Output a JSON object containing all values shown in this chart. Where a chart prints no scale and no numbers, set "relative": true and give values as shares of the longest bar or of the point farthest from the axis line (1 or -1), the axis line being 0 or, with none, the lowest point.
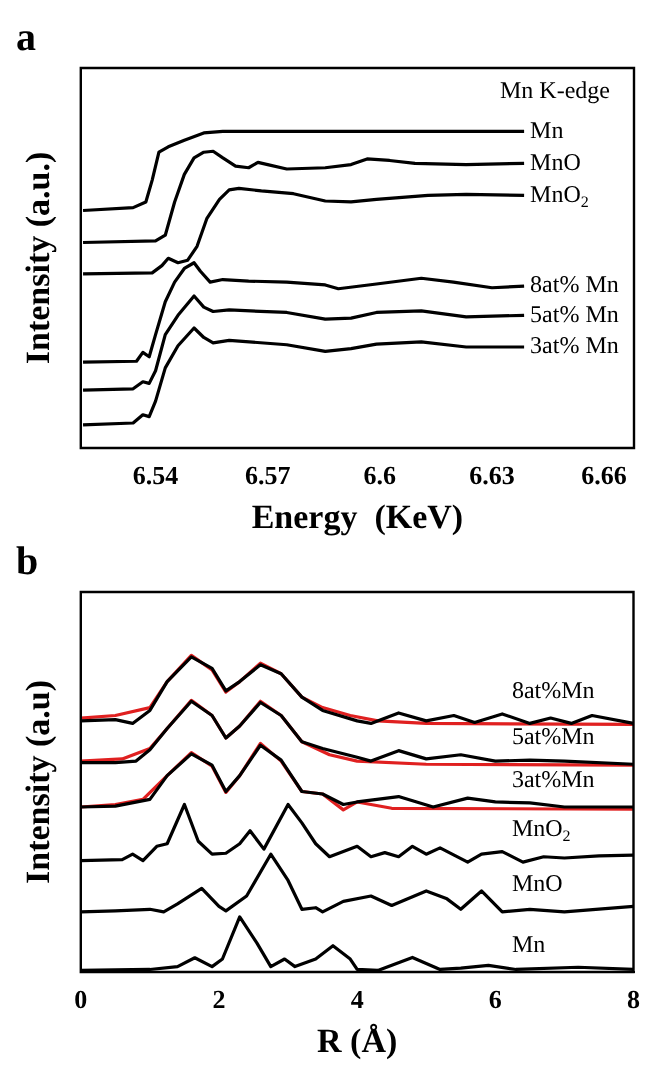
{
  "chart_data": [
    {
      "type": "line",
      "title": "a",
      "xlabel": "Energy  (KeV)",
      "ylabel": "Intensity (a.u.)",
      "relative": true,
      "marker": "none",
      "xlim": [
        6.52,
        6.668
      ],
      "xticks": [
        6.54,
        6.57,
        6.6,
        6.63,
        6.66
      ],
      "annotations": [
        "Mn K-edge"
      ],
      "series": [
        {
          "name": "Mn",
          "color": "#000000",
          "x": [
            6.5206,
            6.534,
            6.5374,
            6.5391,
            6.5409,
            6.5434,
            6.5477,
            6.5529,
            6.558,
            6.6386
          ],
          "values": [
            0.75,
            0.759,
            0.777,
            0.846,
            0.934,
            0.951,
            0.972,
            0.995,
            1,
            1
          ]
        },
        {
          "name": "MnO",
          "color": "#000000",
          "x": [
            6.5206,
            6.54,
            6.5426,
            6.5451,
            6.5477,
            6.5503,
            6.5529,
            6.5554,
            6.558,
            6.5614,
            6.5649,
            6.5674,
            6.57,
            6.5751,
            6.5854,
            6.5923,
            6.5966,
            6.6026,
            6.6094,
            6.6231,
            6.6386
          ],
          "values": [
            0.649,
            0.654,
            0.672,
            0.777,
            0.864,
            0.916,
            0.934,
            0.937,
            0.916,
            0.89,
            0.885,
            0.902,
            0.895,
            0.881,
            0.885,
            0.895,
            0.913,
            0.908,
            0.899,
            0.895,
            0.899
          ]
        },
        {
          "name": "MnO$_{2}$",
          "color": "#000000",
          "x": [
            6.5206,
            6.5391,
            6.5417,
            6.5434,
            6.546,
            6.5486,
            6.5511,
            6.5537,
            6.5571,
            6.5597,
            6.5623,
            6.5683,
            6.5769,
            6.5854,
            6.5923,
            6.5991,
            6.6129,
            6.6231,
            6.6386
          ],
          "values": [
            0.55,
            0.553,
            0.576,
            0.599,
            0.585,
            0.593,
            0.637,
            0.724,
            0.785,
            0.815,
            0.82,
            0.812,
            0.803,
            0.78,
            0.777,
            0.785,
            0.798,
            0.801,
            0.798
          ]
        },
        {
          "name": "8at% Mn",
          "color": "#000000",
          "x": [
            6.5206,
            6.5349,
            6.5366,
            6.5383,
            6.54,
            6.5426,
            6.5451,
            6.5477,
            6.5503,
            6.552,
            6.5546,
            6.558,
            6.5649,
            6.5751,
            6.5854,
            6.5889,
            6.5991,
            6.6111,
            6.6197,
            6.63,
            6.6386
          ],
          "values": [
            0.271,
            0.274,
            0.302,
            0.288,
            0.358,
            0.462,
            0.524,
            0.567,
            0.585,
            0.558,
            0.524,
            0.532,
            0.527,
            0.524,
            0.515,
            0.503,
            0.518,
            0.536,
            0.524,
            0.506,
            0.511
          ]
        },
        {
          "name": "5at% Mn",
          "color": "#000000",
          "x": [
            6.5206,
            6.534,
            6.5366,
            6.5383,
            6.54,
            6.5426,
            6.546,
            6.5503,
            6.5529,
            6.5554,
            6.5597,
            6.5751,
            6.5854,
            6.5923,
            6.5991,
            6.6111,
            6.6231,
            6.6386
          ],
          "values": [
            0.183,
            0.187,
            0.209,
            0.204,
            0.244,
            0.358,
            0.419,
            0.48,
            0.445,
            0.431,
            0.436,
            0.428,
            0.407,
            0.41,
            0.428,
            0.433,
            0.414,
            0.419
          ]
        },
        {
          "name": "3at% Mn",
          "color": "#000000",
          "x": [
            6.5206,
            6.534,
            6.5366,
            6.5383,
            6.54,
            6.5426,
            6.546,
            6.5503,
            6.5529,
            6.5554,
            6.5597,
            6.5751,
            6.5854,
            6.5923,
            6.5991,
            6.6111,
            6.6231,
            6.6386
          ],
          "values": [
            0.073,
            0.079,
            0.105,
            0.099,
            0.148,
            0.253,
            0.323,
            0.379,
            0.349,
            0.332,
            0.34,
            0.326,
            0.305,
            0.314,
            0.328,
            0.335,
            0.319,
            0.319
          ]
        }
      ]
    },
    {
      "type": "line",
      "title": "b",
      "xlabel": "R (Å)",
      "ylabel": "Intensity (a.u)",
      "relative": true,
      "marker": "none",
      "xlim": [
        0,
        8
      ],
      "xticks": [
        0,
        2,
        4,
        6,
        8
      ],
      "series": [
        {
          "name": "8at%Mn",
          "color": "#000000",
          "x": [
            0,
            0.5,
            0.75,
            1,
            1.25,
            1.6,
            1.9,
            2.1,
            2.3,
            2.6,
            2.9,
            3.2,
            3.5,
            4,
            4.2,
            4.6,
            5,
            5.4,
            5.7,
            6.1,
            6.5,
            6.8,
            7.1,
            7.4,
            8
          ],
          "values": [
            0.793,
            0.797,
            0.785,
            0.826,
            0.917,
            0.995,
            0.959,
            0.888,
            0.917,
            0.97,
            0.942,
            0.868,
            0.826,
            0.793,
            0.785,
            0.818,
            0.793,
            0.81,
            0.788,
            0.815,
            0.785,
            0.802,
            0.785,
            0.81,
            0.785
          ]
        },
        {
          "color": "#e02020",
          "x": [
            0,
            0.5,
            1,
            1.25,
            1.6,
            1.9,
            2.1,
            2.3,
            2.6,
            2.9,
            3.2,
            3.5,
            3.9,
            4.3,
            5,
            8
          ],
          "values": [
            0.802,
            0.81,
            0.835,
            0.917,
            1,
            0.954,
            0.884,
            0.917,
            0.975,
            0.942,
            0.868,
            0.835,
            0.81,
            0.793,
            0.785,
            0.782
          ]
        },
        {
          "name": "5at%Mn",
          "color": "#000000",
          "x": [
            0,
            0.5,
            0.8,
            1,
            1.25,
            1.6,
            1.9,
            2.1,
            2.3,
            2.6,
            2.9,
            3.2,
            3.5,
            4,
            4.2,
            4.6,
            5,
            5.5,
            6,
            6.5,
            7,
            8
          ],
          "values": [
            0.661,
            0.661,
            0.666,
            0.702,
            0.769,
            0.855,
            0.81,
            0.739,
            0.777,
            0.851,
            0.81,
            0.727,
            0.706,
            0.678,
            0.666,
            0.699,
            0.673,
            0.686,
            0.666,
            0.669,
            0.666,
            0.656
          ]
        },
        {
          "color": "#e02020",
          "x": [
            0,
            0.6,
            1,
            1.25,
            1.6,
            1.9,
            2.1,
            2.3,
            2.6,
            2.9,
            3.2,
            3.6,
            4,
            5,
            8
          ],
          "values": [
            0.666,
            0.673,
            0.706,
            0.769,
            0.858,
            0.81,
            0.739,
            0.777,
            0.855,
            0.81,
            0.727,
            0.686,
            0.666,
            0.656,
            0.653
          ]
        },
        {
          "name": "3at%Mn",
          "color": "#000000",
          "x": [
            0,
            0.5,
            1,
            1.25,
            1.6,
            1.9,
            2.1,
            2.3,
            2.6,
            2.9,
            3.2,
            3.5,
            3.8,
            4,
            4.6,
            5.1,
            5.6,
            6,
            6.5,
            7,
            8
          ],
          "values": [
            0.521,
            0.524,
            0.545,
            0.62,
            0.689,
            0.653,
            0.57,
            0.62,
            0.716,
            0.669,
            0.57,
            0.562,
            0.529,
            0.537,
            0.554,
            0.521,
            0.549,
            0.537,
            0.534,
            0.521,
            0.521
          ]
        },
        {
          "color": "#e02020",
          "x": [
            0,
            0.5,
            0.9,
            1.25,
            1.6,
            1.9,
            2.1,
            2.3,
            2.6,
            2.9,
            3.2,
            3.5,
            3.8,
            4,
            4.5,
            8
          ],
          "values": [
            0.521,
            0.529,
            0.545,
            0.62,
            0.693,
            0.65,
            0.567,
            0.62,
            0.722,
            0.666,
            0.57,
            0.562,
            0.512,
            0.537,
            0.517,
            0.514
          ]
        },
        {
          "name": "MnO$_{2}$",
          "color": "#000000",
          "x": [
            0,
            0.6,
            0.75,
            0.9,
            1.1,
            1.25,
            1.5,
            1.7,
            1.9,
            2.1,
            2.3,
            2.45,
            2.65,
            3,
            3.2,
            3.4,
            3.6,
            4,
            4.2,
            4.4,
            4.6,
            4.8,
            5,
            5.2,
            5.6,
            5.8,
            6.1,
            6.4,
            6.7,
            7,
            7.5,
            8
          ],
          "values": [
            0.352,
            0.355,
            0.372,
            0.352,
            0.397,
            0.405,
            0.529,
            0.413,
            0.372,
            0.375,
            0.405,
            0.446,
            0.388,
            0.529,
            0.471,
            0.405,
            0.364,
            0.397,
            0.364,
            0.377,
            0.364,
            0.397,
            0.372,
            0.392,
            0.347,
            0.372,
            0.38,
            0.347,
            0.364,
            0.36,
            0.367,
            0.369
          ]
        },
        {
          "name": "MnO",
          "color": "#000000",
          "x": [
            0,
            0.5,
            1,
            1.2,
            1.4,
            1.75,
            2,
            2.1,
            2.4,
            2.75,
            3,
            3.2,
            3.4,
            3.5,
            3.8,
            4.2,
            4.5,
            5,
            5.3,
            5.5,
            5.8,
            6.1,
            6.5,
            7,
            8
          ],
          "values": [
            0.19,
            0.193,
            0.198,
            0.19,
            0.215,
            0.264,
            0.207,
            0.193,
            0.24,
            0.372,
            0.289,
            0.198,
            0.203,
            0.19,
            0.223,
            0.24,
            0.21,
            0.256,
            0.231,
            0.198,
            0.256,
            0.19,
            0.198,
            0.19,
            0.207
          ]
        },
        {
          "name": "Mn",
          "color": "#000000",
          "x": [
            0,
            1,
            1.4,
            1.65,
            1.9,
            2.05,
            2.3,
            2.55,
            2.75,
            2.95,
            3.1,
            3.4,
            3.65,
            3.9,
            4,
            4.3,
            4.8,
            5.2,
            5.5,
            5.9,
            6.3,
            7.2,
            8
          ],
          "values": [
            0.005,
            0.008,
            0.017,
            0.045,
            0.017,
            0.041,
            0.174,
            0.091,
            0.017,
            0.041,
            0.017,
            0.041,
            0.083,
            0.041,
            0.008,
            0.005,
            0.046,
            0.008,
            0.012,
            0.021,
            0.008,
            0.015,
            0.008
          ]
        }
      ]
    }
  ]
}
